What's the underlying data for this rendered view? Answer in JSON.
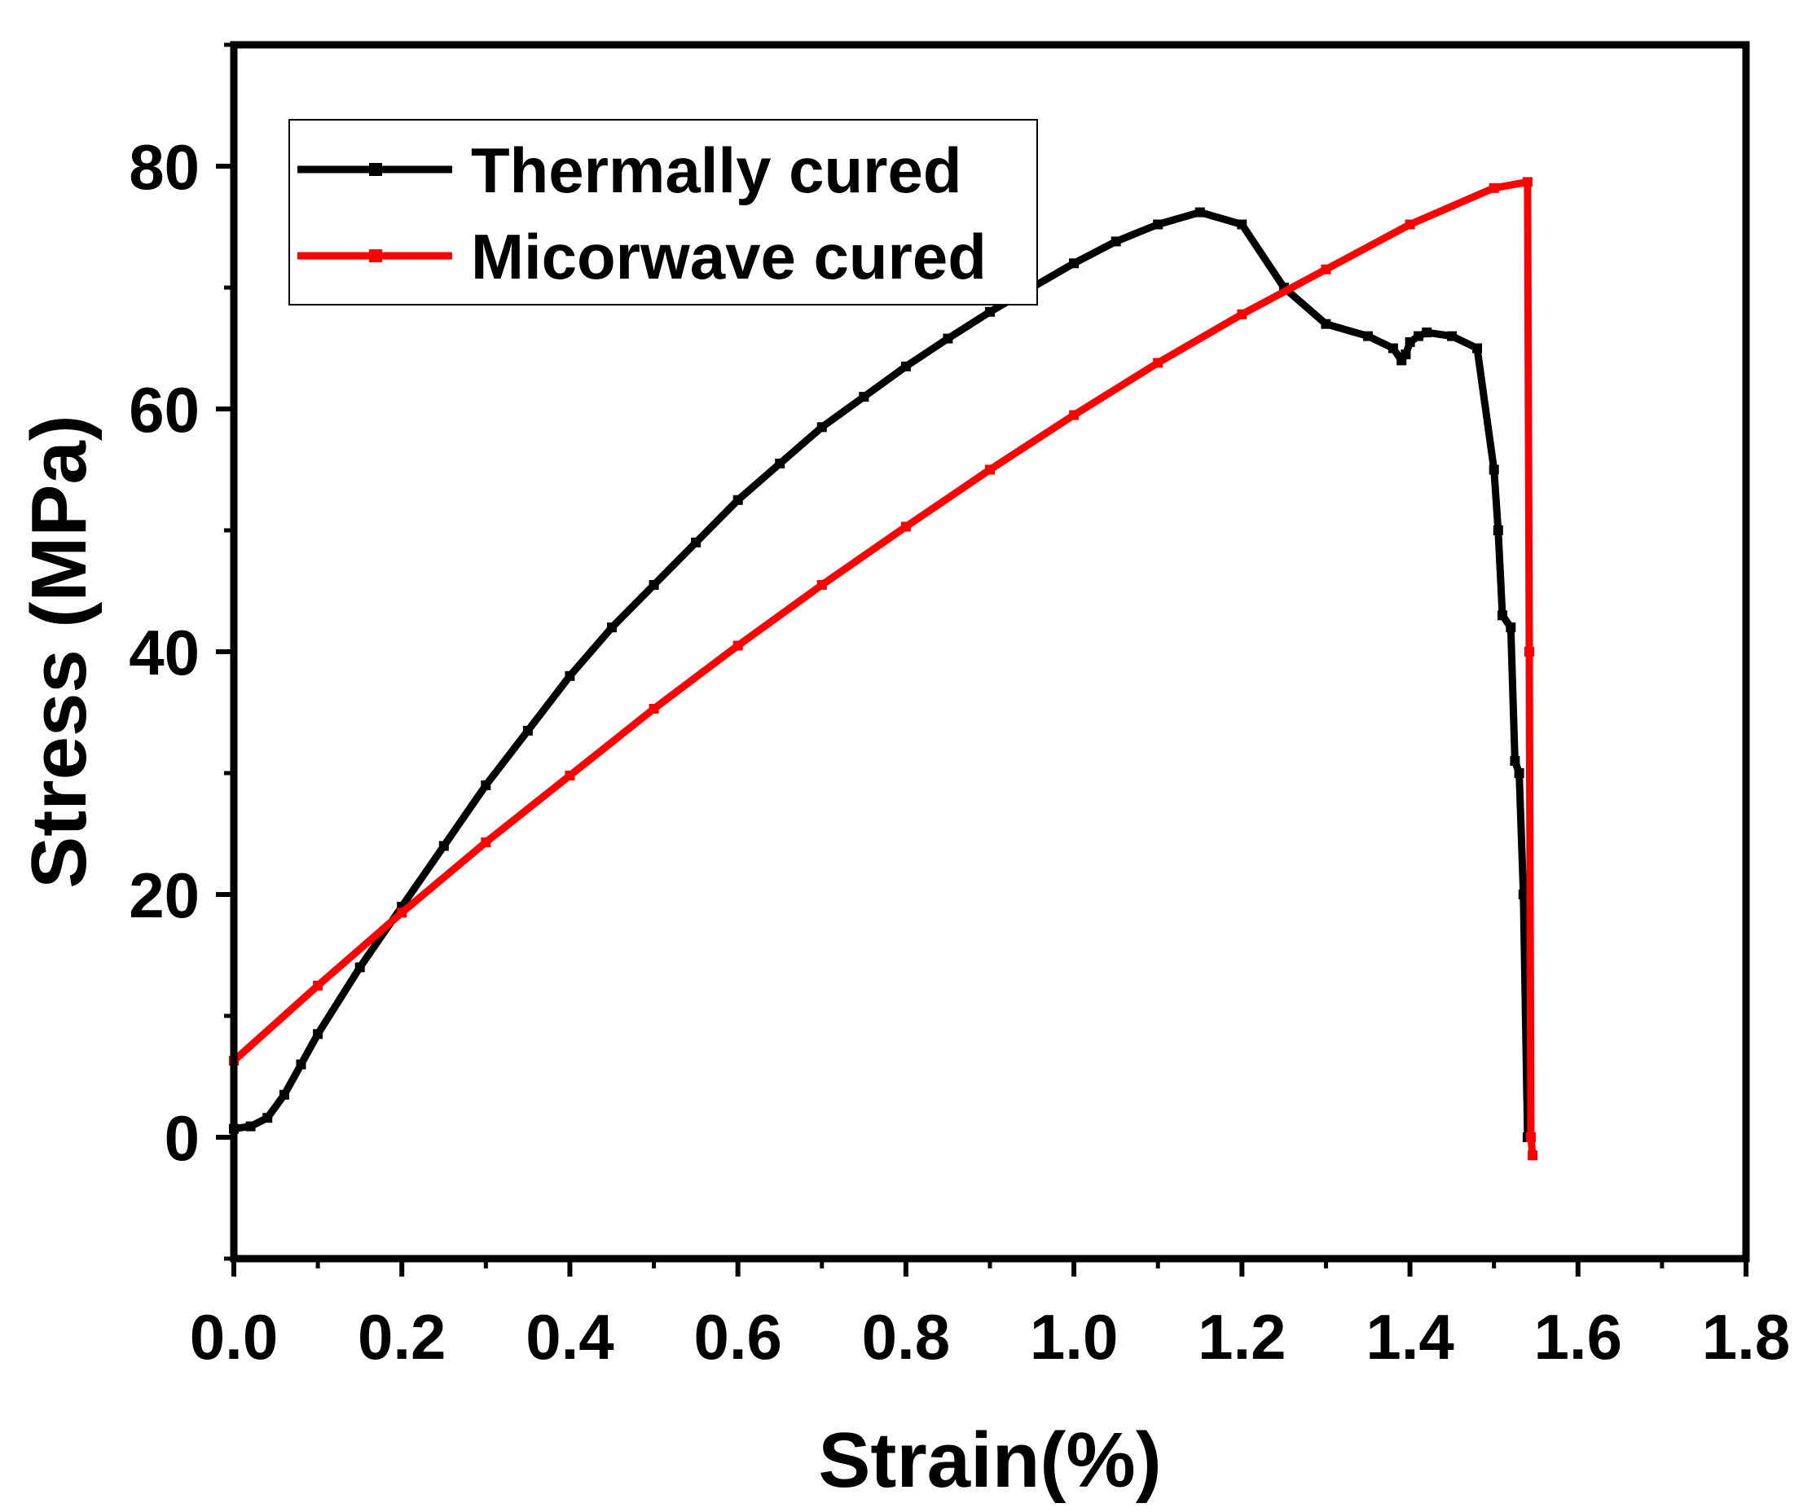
{
  "chart_data": {
    "type": "line",
    "title": "",
    "xlabel": "Strain(%)",
    "ylabel": "Stress (MPa)",
    "xlim": [
      0.0,
      1.8
    ],
    "ylim": [
      -10,
      90
    ],
    "x_ticks": [
      0.0,
      0.2,
      0.4,
      0.6,
      0.8,
      1.0,
      1.2,
      1.4,
      1.6,
      1.8
    ],
    "x_tick_labels": [
      "0.0",
      "0.2",
      "0.4",
      "0.6",
      "0.8",
      "1.0",
      "1.2",
      "1.4",
      "1.6",
      "1.8"
    ],
    "y_ticks": [
      0,
      20,
      40,
      60,
      80
    ],
    "y_tick_labels": [
      "0",
      "20",
      "40",
      "60",
      "80"
    ],
    "grid": false,
    "legend_position": "top-left",
    "series": [
      {
        "name": "Thermally cured",
        "color": "#000000",
        "x": [
          0.0,
          0.02,
          0.04,
          0.06,
          0.08,
          0.1,
          0.15,
          0.2,
          0.25,
          0.3,
          0.35,
          0.4,
          0.45,
          0.5,
          0.55,
          0.6,
          0.65,
          0.7,
          0.75,
          0.8,
          0.85,
          0.9,
          0.95,
          1.0,
          1.05,
          1.1,
          1.15,
          1.2,
          1.25,
          1.3,
          1.35,
          1.38,
          1.39,
          1.395,
          1.4,
          1.41,
          1.42,
          1.45,
          1.48,
          1.5,
          1.505,
          1.51,
          1.52,
          1.525,
          1.53,
          1.535,
          1.54
        ],
        "y": [
          0.7,
          0.9,
          1.6,
          3.5,
          6.0,
          8.5,
          14.0,
          19.0,
          24.0,
          29.0,
          33.5,
          38.0,
          42.0,
          45.5,
          49.0,
          52.5,
          55.5,
          58.5,
          61.0,
          63.5,
          65.8,
          68.0,
          70.0,
          72.0,
          73.8,
          75.2,
          76.2,
          75.2,
          70.0,
          67.0,
          66.0,
          65.0,
          64.0,
          64.5,
          65.5,
          66.0,
          66.3,
          66.0,
          65.0,
          55.0,
          50.0,
          43.0,
          42.0,
          31.0,
          30.0,
          20.0,
          0.0
        ],
        "values_note": ""
      },
      {
        "name": "Micorwave cured",
        "color": "#ff0000",
        "x": [
          0.0,
          0.1,
          0.2,
          0.3,
          0.4,
          0.5,
          0.6,
          0.7,
          0.8,
          0.9,
          1.0,
          1.1,
          1.2,
          1.3,
          1.4,
          1.5,
          1.54,
          1.542,
          1.544,
          1.546
        ],
        "y": [
          6.3,
          12.5,
          18.5,
          24.3,
          29.8,
          35.3,
          40.5,
          45.5,
          50.3,
          55.0,
          59.5,
          63.8,
          67.8,
          71.5,
          75.2,
          78.2,
          78.7,
          40.0,
          0.0,
          -1.5
        ]
      }
    ]
  }
}
